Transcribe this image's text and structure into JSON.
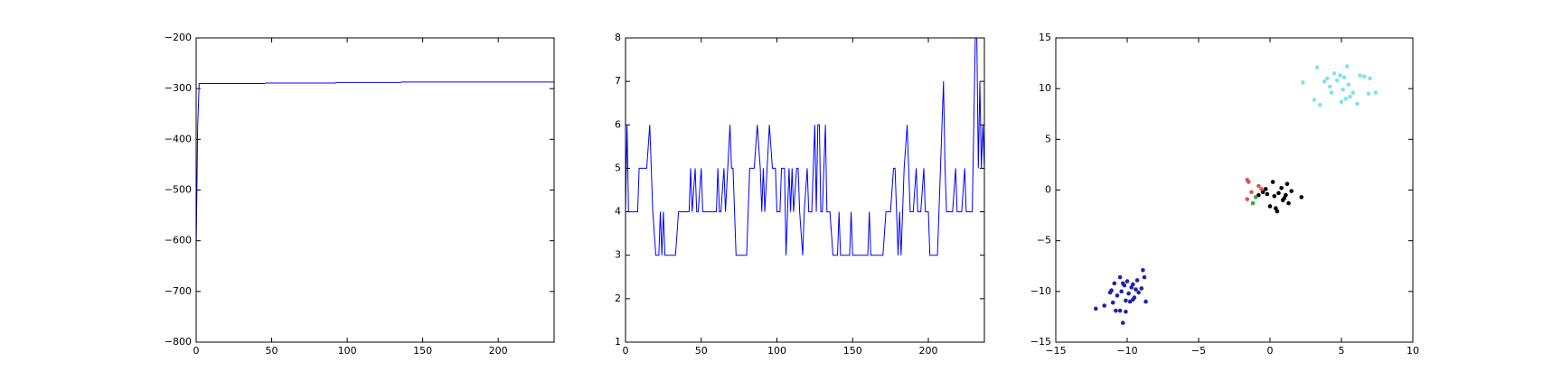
{
  "chart_data": [
    {
      "type": "line",
      "color": "#0000ff",
      "x": [
        0,
        1,
        2,
        45,
        46,
        92,
        93,
        135,
        136,
        237
      ],
      "values": [
        -620,
        -375,
        -290,
        -290,
        -289,
        -289,
        -288,
        -288,
        -287,
        -287
      ],
      "xlim": [
        0,
        237
      ],
      "xticks": [
        0,
        50,
        100,
        150,
        200
      ],
      "ylim": [
        -800,
        -200
      ],
      "yticks": [
        {
          "value": -800,
          "label": "−800"
        },
        {
          "value": -700,
          "label": "−700"
        },
        {
          "value": -600,
          "label": "−600"
        },
        {
          "value": -500,
          "label": "−500"
        },
        {
          "value": -400,
          "label": "−400"
        },
        {
          "value": -300,
          "label": "−300"
        },
        {
          "value": -200,
          "label": "−200"
        }
      ]
    },
    {
      "type": "line",
      "color": "#0000ff",
      "x": [
        0,
        1,
        2,
        8,
        9,
        14,
        16,
        18,
        20,
        22,
        23,
        24,
        25,
        26,
        33,
        35,
        42,
        43,
        44,
        46,
        47,
        48,
        50,
        51,
        60,
        61,
        62,
        63,
        65,
        66,
        69,
        70,
        71,
        73,
        80,
        82,
        85,
        87,
        89,
        90,
        91,
        92,
        95,
        97,
        99,
        100,
        102,
        103,
        105,
        106,
        108,
        109,
        110,
        111,
        113,
        114,
        115,
        117,
        118,
        120,
        121,
        123,
        125,
        126,
        127,
        128,
        129,
        130,
        132,
        133,
        135,
        137,
        140,
        141,
        142,
        148,
        149,
        150,
        152,
        160,
        161,
        162,
        170,
        172,
        175,
        177,
        178,
        179,
        180,
        181,
        182,
        184,
        186,
        188,
        190,
        192,
        193,
        195,
        197,
        198,
        200,
        201,
        206,
        208,
        210,
        211,
        212,
        216,
        218,
        219,
        222,
        224,
        225,
        229,
        231,
        232,
        233,
        234,
        235,
        236,
        237
      ],
      "values": [
        4,
        6,
        4,
        4,
        5,
        5,
        6,
        4,
        3,
        3,
        4,
        3,
        4,
        3,
        3,
        4,
        4,
        5,
        4,
        5,
        4,
        4,
        5,
        4,
        4,
        5,
        4,
        4,
        5,
        4,
        6,
        5,
        5,
        3,
        3,
        5,
        5,
        6,
        5,
        4,
        5,
        4,
        6,
        5,
        5,
        4,
        4,
        5,
        5,
        3,
        5,
        4,
        5,
        4,
        5,
        5,
        4,
        3,
        4,
        5,
        4,
        4,
        6,
        4,
        6,
        6,
        4,
        4,
        6,
        4,
        4,
        3,
        3,
        4,
        3,
        3,
        4,
        3,
        3,
        3,
        4,
        3,
        3,
        4,
        4,
        5,
        5,
        4,
        3,
        4,
        3,
        5,
        6,
        4,
        4,
        5,
        4,
        4,
        5,
        4,
        4,
        3,
        3,
        5,
        7,
        5,
        4,
        4,
        5,
        4,
        4,
        5,
        4,
        4,
        8,
        8,
        5,
        7,
        5,
        6,
        5
      ],
      "xlim": [
        0,
        237
      ],
      "xticks": [
        0,
        50,
        100,
        150,
        200
      ],
      "ylim": [
        1,
        8
      ],
      "yticks": [
        1,
        2,
        3,
        4,
        5,
        6,
        7,
        8
      ]
    },
    {
      "type": "scatter",
      "series": [
        {
          "color": "#2222aa",
          "x": [
            -12.2,
            -11.6,
            -11.2,
            -11.0,
            -10.9,
            -10.8,
            -10.7,
            -10.5,
            -10.4,
            -10.3,
            -10.2,
            -10.1,
            -10.0,
            -9.9,
            -9.8,
            -9.7,
            -9.6,
            -9.5,
            -9.4,
            -9.3,
            -9.2,
            -9.0,
            -8.9,
            -8.8,
            -8.7,
            -10.5,
            -10.1,
            -9.6,
            -11.1,
            -10.3
          ],
          "values": [
            -11.7,
            -11.4,
            -10.1,
            -11.1,
            -9.2,
            -11.9,
            -10.4,
            -8.6,
            -10.0,
            -13.1,
            -9.4,
            -10.9,
            -9.0,
            -10.2,
            -11.0,
            -9.6,
            -9.3,
            -10.6,
            -9.8,
            -8.9,
            -10.1,
            -9.7,
            -7.9,
            -8.6,
            -11.0,
            -11.9,
            -12.0,
            -10.8,
            -9.9,
            -9.2
          ]
        },
        {
          "color": "#7fe3ee",
          "x": [
            2.3,
            3.1,
            3.3,
            3.5,
            3.8,
            4.0,
            4.2,
            4.3,
            4.5,
            4.7,
            4.9,
            5.0,
            5.1,
            5.2,
            5.3,
            5.4,
            5.5,
            5.6,
            5.8,
            6.1,
            6.3,
            6.6,
            6.9,
            7.0,
            7.4
          ],
          "values": [
            10.6,
            8.9,
            12.1,
            8.4,
            10.7,
            11.0,
            10.2,
            9.6,
            11.5,
            10.8,
            11.3,
            8.7,
            9.9,
            11.1,
            9.0,
            12.2,
            10.4,
            9.2,
            9.6,
            8.5,
            11.3,
            11.2,
            9.5,
            11.0,
            9.6
          ]
        },
        {
          "color": "#000000",
          "x": [
            -0.8,
            -0.5,
            -0.3,
            0.0,
            0.2,
            0.3,
            0.5,
            0.6,
            0.8,
            0.9,
            1.1,
            1.2,
            1.3,
            1.5,
            2.2,
            0.4,
            -0.2,
            1.0
          ],
          "values": [
            -0.5,
            -0.2,
            0.1,
            -1.6,
            0.8,
            -0.6,
            -2.1,
            -0.3,
            0.2,
            -1.0,
            -0.5,
            0.6,
            -1.3,
            -0.1,
            -0.7,
            -1.8,
            -0.4,
            -0.8
          ]
        },
        {
          "color": "#dd5555",
          "x": [
            -1.6,
            -1.5,
            -1.3,
            -0.8,
            -0.6,
            -1.6
          ],
          "values": [
            1.0,
            0.8,
            -0.2,
            0.4,
            0.1,
            -0.9
          ]
        },
        {
          "color": "#33aa33",
          "x": [
            -1.2,
            -1.0
          ],
          "values": [
            -1.3,
            -0.7
          ]
        }
      ],
      "xlim": [
        -15,
        10
      ],
      "xticks": [
        {
          "value": -15,
          "label": "−15"
        },
        {
          "value": -10,
          "label": "−10"
        },
        {
          "value": -5,
          "label": "−5"
        },
        0,
        5,
        10
      ],
      "ylim": [
        -15,
        15
      ],
      "yticks": [
        {
          "value": -15,
          "label": "−15"
        },
        {
          "value": -10,
          "label": "−10"
        },
        {
          "value": -5,
          "label": "−5"
        },
        0,
        5,
        10,
        15
      ]
    }
  ]
}
